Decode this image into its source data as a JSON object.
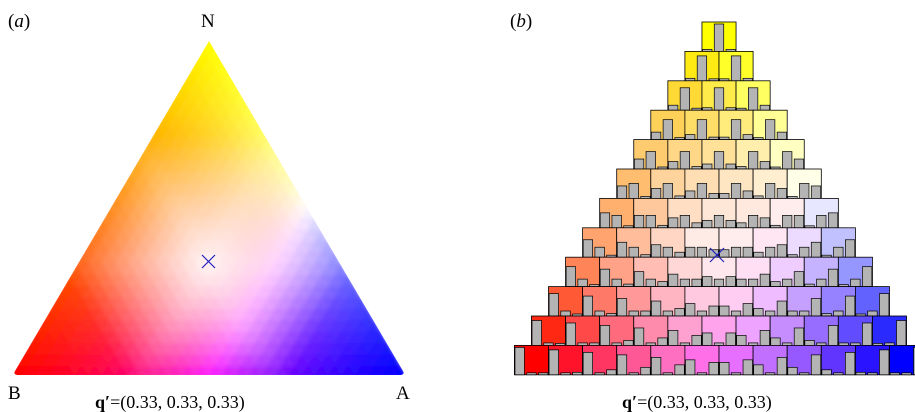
{
  "panel_a": {
    "label": "a",
    "vertices": {
      "top": "N",
      "left": "B",
      "right": "A"
    },
    "caption_symbol": "q′",
    "caption_value": "(0.33, 0.33, 0.33)",
    "marker_colour": "#2020c0"
  },
  "panel_b": {
    "label": "b",
    "caption_symbol": "q′",
    "caption_value": "(0.33, 0.33, 0.33)",
    "rows": 12,
    "bar_colour": "#b4b4b4",
    "marker_colour": "#2020c0"
  },
  "colours": {
    "N": "#ffff00",
    "B": "#ff0000",
    "A": "#0000ff"
  }
}
